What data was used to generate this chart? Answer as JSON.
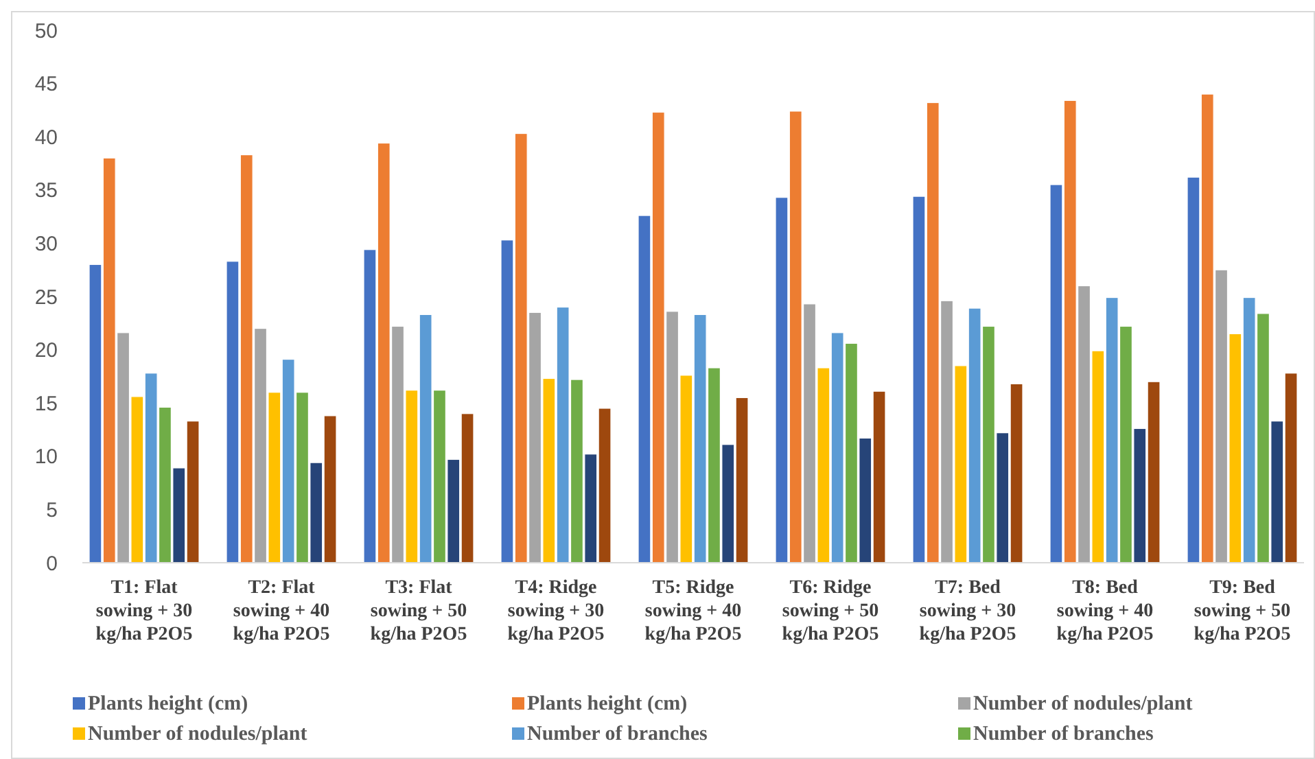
{
  "chart_data": {
    "type": "bar",
    "categories": [
      "T1: Flat sowing + 30 kg/ha P2O5",
      "T2: Flat sowing + 40 kg/ha P2O5",
      "T3: Flat sowing + 50 kg/ha P2O5",
      "T4: Ridge sowing + 30 kg/ha P2O5",
      "T5: Ridge sowing + 40 kg/ha P2O5",
      "T6: Ridge sowing + 50 kg/ha P2O5",
      "T7: Bed sowing + 30 kg/ha P2O5",
      "T8: Bed sowing + 40 kg/ha P2O5",
      "T9: Bed sowing + 50 kg/ha P2O5"
    ],
    "series": [
      {
        "name": "Plants height (cm)",
        "color": "#4472c4",
        "values": [
          28,
          28.3,
          29.4,
          30.3,
          32.6,
          34.3,
          34.4,
          35.5,
          36.2
        ]
      },
      {
        "name": "Plants height (cm)",
        "color": "#ed7d31",
        "values": [
          38,
          38.3,
          39.4,
          40.3,
          42.3,
          42.4,
          43.2,
          43.4,
          44
        ]
      },
      {
        "name": "Number of nodules/plant",
        "color": "#a5a5a5",
        "values": [
          21.6,
          22,
          22.2,
          23.5,
          23.6,
          24.3,
          24.6,
          26,
          27.5
        ]
      },
      {
        "name": "Number of nodules/plant",
        "color": "#ffc000",
        "values": [
          15.6,
          16,
          16.2,
          17.3,
          17.6,
          18.3,
          18.5,
          19.9,
          21.5
        ]
      },
      {
        "name": "Number of branches",
        "color": "#5b9bd5",
        "values": [
          17.8,
          19.1,
          23.3,
          24,
          23.3,
          21.6,
          23.9,
          24.9,
          24.9
        ]
      },
      {
        "name": "Number of branches",
        "color": "#70ad47",
        "values": [
          14.6,
          16,
          16.2,
          17.2,
          18.3,
          20.6,
          22.2,
          22.2,
          23.4
        ]
      },
      {
        "color": "#264478",
        "values": [
          8.9,
          9.4,
          9.7,
          10.2,
          11.1,
          11.7,
          12.2,
          12.6,
          13.3
        ]
      },
      {
        "color": "#9e480e",
        "values": [
          13.3,
          13.8,
          14,
          14.5,
          15.5,
          16.1,
          16.8,
          17,
          17.8
        ]
      }
    ],
    "ylim": [
      0,
      50
    ],
    "yticks": [
      0,
      5,
      10,
      15,
      20,
      25,
      30,
      35,
      40,
      45,
      50
    ],
    "grid": false,
    "legend": "bottom"
  }
}
